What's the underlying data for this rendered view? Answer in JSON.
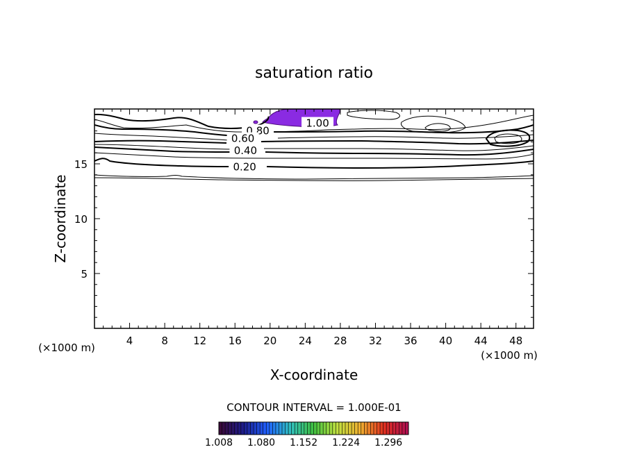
{
  "chart_data": {
    "type": "contour",
    "title": "saturation ratio",
    "xlabel": "X-coordinate",
    "ylabel": "Z-coordinate",
    "x_unit_left": "(×1000 m)",
    "x_unit_right": "(×1000 m)",
    "xlim": [
      0,
      50
    ],
    "ylim": [
      0,
      20
    ],
    "x_ticks": [
      4,
      8,
      12,
      16,
      20,
      24,
      28,
      32,
      36,
      40,
      44,
      48
    ],
    "y_ticks": [
      5,
      10,
      15
    ],
    "contour_interval_label": "CONTOUR INTERVAL = 1.000E-01",
    "contour_labels": [
      {
        "text": "1.00",
        "x": 25.4,
        "z": 18.7
      },
      {
        "text": "0.80",
        "x": 18.6,
        "z": 18.0
      },
      {
        "text": "0.60",
        "x": 16.9,
        "z": 17.3
      },
      {
        "text": "0.40",
        "x": 17.2,
        "z": 16.2
      },
      {
        "text": "0.20",
        "x": 17.1,
        "z": 14.7
      }
    ],
    "colorbar": {
      "range": [
        1.008,
        1.33
      ],
      "tick_labels": [
        "1.008",
        "1.080",
        "1.152",
        "1.224",
        "1.296"
      ],
      "colors": [
        "#3a0a3a",
        "#1c1c8c",
        "#2060ff",
        "#30c0c0",
        "#40c040",
        "#c0e040",
        "#f0b030",
        "#e03020",
        "#b01050"
      ]
    },
    "filled_region_color": "#8a2be2"
  }
}
